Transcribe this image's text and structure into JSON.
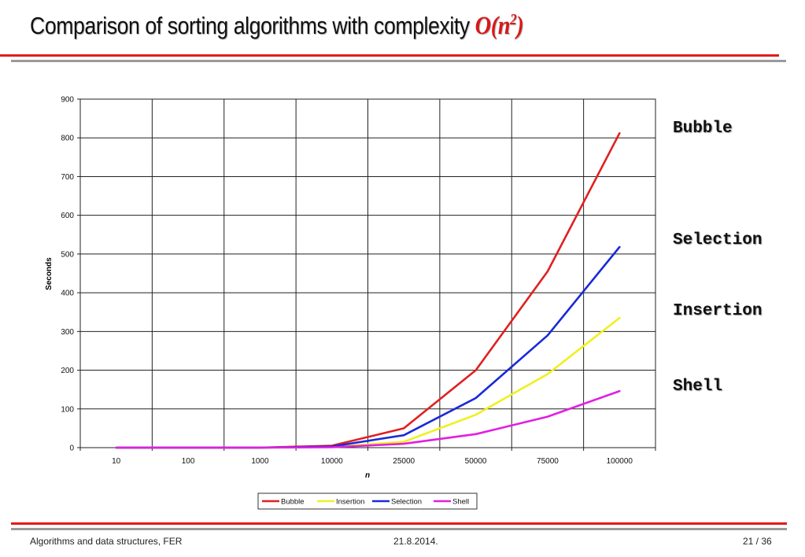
{
  "slide": {
    "title_text": "Comparison of sorting algorithms with complexity ",
    "title_formula": "O(n",
    "title_formula_sup": "2",
    "title_formula_close": ")",
    "side_labels": [
      "Bubble",
      "Selection",
      "Insertion",
      "Shell"
    ]
  },
  "footer": {
    "left": "Algorithms and data structures, FER",
    "center": "21.8.2014.",
    "right": "21 / 36"
  },
  "colors": {
    "accent": "#e41b17",
    "formula": "#d81818",
    "rule_gray": "#9a9a9a"
  },
  "chart_data": {
    "type": "line",
    "title": "",
    "xlabel": "n",
    "ylabel": "Seconds",
    "categories": [
      "10",
      "100",
      "1000",
      "10000",
      "25000",
      "50000",
      "75000",
      "100000"
    ],
    "ylim": [
      0,
      900
    ],
    "yticks": [
      0,
      100,
      200,
      300,
      400,
      500,
      600,
      700,
      800,
      900
    ],
    "grid": true,
    "legend_position": "bottom",
    "series": [
      {
        "name": "Bubble",
        "color": "#e02020",
        "values": [
          0,
          0,
          0,
          5,
          50,
          200,
          455,
          812
        ]
      },
      {
        "name": "Insertion",
        "color": "#f0f020",
        "values": [
          0,
          0,
          0,
          2,
          15,
          85,
          190,
          335
        ]
      },
      {
        "name": "Selection",
        "color": "#1a2ad8",
        "values": [
          0,
          0,
          0,
          3,
          32,
          128,
          290,
          518
        ]
      },
      {
        "name": "Shell",
        "color": "#e020e0",
        "values": [
          0,
          0,
          0,
          1,
          10,
          35,
          80,
          146
        ]
      }
    ]
  }
}
